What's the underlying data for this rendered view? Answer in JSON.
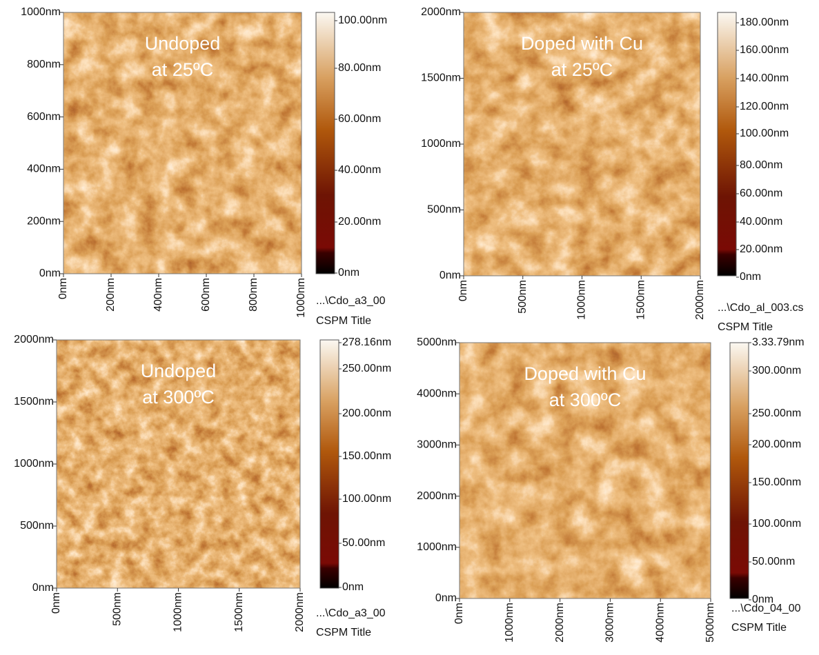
{
  "panels": [
    {
      "title": [
        "Undoped",
        "at 25ºC"
      ],
      "y_ticks": [
        "0nm",
        "200nm",
        "400nm",
        "600nm",
        "800nm",
        "1000nm"
      ],
      "x_ticks": [
        "0nm",
        "200nm",
        "400nm",
        "600nm",
        "800nm",
        "1000nm"
      ],
      "colorbar_ticks": [
        "0nm",
        "20.00nm",
        "40.00nm",
        "60.00nm",
        "80.00nm",
        "100.00nm"
      ],
      "file": "...\\Cdo_a3_00",
      "caption": "CSPM Title"
    },
    {
      "title": [
        "Doped with Cu",
        "at 25ºC"
      ],
      "y_ticks": [
        "0nm",
        "500nm",
        "1000nm",
        "1500nm",
        "2000nm"
      ],
      "x_ticks": [
        "0nm",
        "500nm",
        "1000nm",
        "1500nm",
        "2000nm"
      ],
      "colorbar_ticks": [
        "0nm",
        "20.00nm",
        "40.00nm",
        "60.00nm",
        "80.00nm",
        "100.00nm",
        "120.00nm",
        "140.00nm",
        "160.00nm",
        "180.00nm"
      ],
      "file": "...\\Cdo_al_003.cs",
      "caption": "CSPM Title"
    },
    {
      "title": [
        "Undoped",
        "at 300ºC"
      ],
      "y_ticks": [
        "0nm",
        "500nm",
        "1000nm",
        "1500nm",
        "2000nm"
      ],
      "x_ticks": [
        "0nm",
        "500nm",
        "1000nm",
        "1500nm",
        "2000nm"
      ],
      "colorbar_ticks": [
        "0nm",
        "50.00nm",
        "100.00nm",
        "150.00nm",
        "200.00nm",
        "250.00nm",
        "278.16nm"
      ],
      "file": "...\\Cdo_a3_00",
      "caption": "CSPM Title"
    },
    {
      "title": [
        "Doped with Cu",
        "at 300ºC"
      ],
      "y_ticks": [
        "0nm",
        "1000nm",
        "2000nm",
        "3000nm",
        "4000nm",
        "5000nm"
      ],
      "x_ticks": [
        "0nm",
        "1000nm",
        "2000nm",
        "3000nm",
        "4000nm",
        "5000nm"
      ],
      "colorbar_ticks": [
        "0nm",
        "50.00nm",
        "100.00nm",
        "150.00nm",
        "200.00nm",
        "250.00nm",
        "300.00nm",
        "3.33.79nm"
      ],
      "file": "...\\Cdo_04_00",
      "caption": "CSPM Title"
    }
  ]
}
